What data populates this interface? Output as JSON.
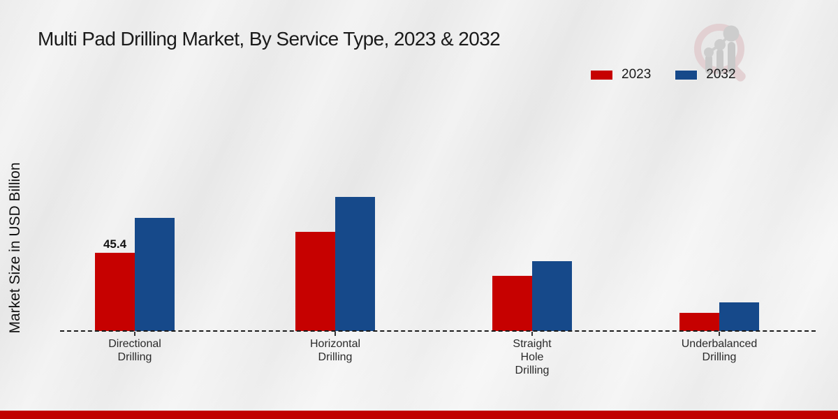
{
  "page": {
    "footer_color": "#c00100",
    "background_color": "#ebebeb"
  },
  "chart_data": {
    "type": "bar",
    "title": "Multi Pad Drilling Market, By Service Type, 2023 & 2032",
    "ylabel": "Market Size in USD Billion",
    "xlabel": "",
    "categories": [
      "Directional\nDrilling",
      "Horizontal\nDrilling",
      "Straight\nHole\nDrilling",
      "Underbalanced\nDrilling"
    ],
    "series": [
      {
        "name": "2023",
        "color": "#c60100",
        "values": [
          45.4,
          57.5,
          32.0,
          10.5
        ]
      },
      {
        "name": "2032",
        "color": "#16498a",
        "values": [
          65.7,
          77.8,
          40.5,
          16.6
        ]
      }
    ],
    "data_labels": [
      {
        "series_index": 0,
        "category_index": 0,
        "text": "45.4"
      }
    ],
    "ylim": [
      0,
      80
    ],
    "grid": false,
    "legend_position": "top-right",
    "baseline_style": "dashed"
  },
  "icons": {
    "logo": "magnifier-bar-chart-logo"
  }
}
